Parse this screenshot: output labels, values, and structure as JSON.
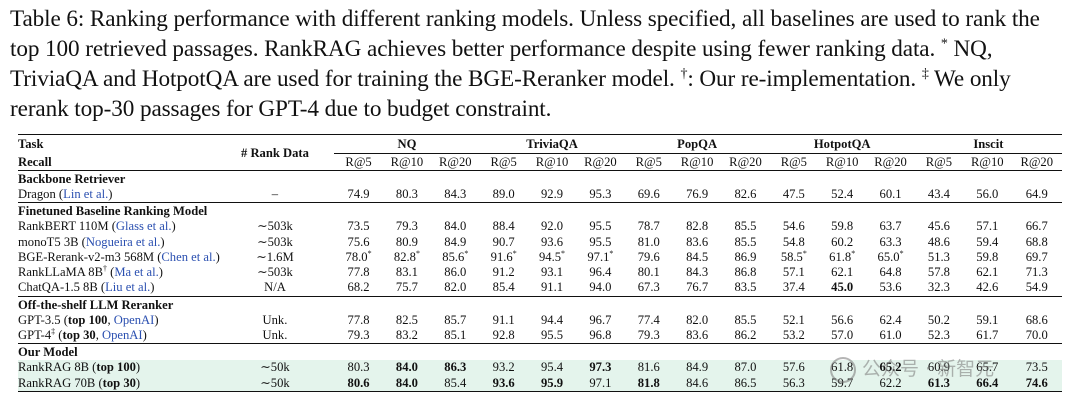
{
  "caption": {
    "label": "Table 6:",
    "text1": " Ranking performance with different ranking models. Unless specified, all baselines are used to rank the top 100 retrieved passages. RankRAG achieves better performance despite using fewer ranking data. ",
    "mark_star": "*",
    "text2": " NQ, TriviaQA and HotpotQA are used for training the BGE-Reranker model. ",
    "mark_dagger": "†",
    "text3": ": Our re-implementation. ",
    "mark_ddagger": "‡",
    "text4": " We only rerank top-30 passages for GPT-4 due to budget constraint."
  },
  "header": {
    "task": "Task",
    "recall": "Recall",
    "rank_data": "# Rank Data",
    "datasets": [
      "NQ",
      "TriviaQA",
      "PopQA",
      "HotpotQA",
      "Inscit"
    ],
    "metrics": [
      "R@5",
      "R@10",
      "R@20"
    ]
  },
  "sections": [
    {
      "title": "Backbone Retriever",
      "rows": [
        {
          "name": "Dragon",
          "cite": "Lin et al.",
          "rank": "–",
          "vals": [
            "74.9",
            "80.3",
            "84.3",
            "89.0",
            "92.9",
            "95.3",
            "69.6",
            "76.9",
            "82.6",
            "47.5",
            "52.4",
            "60.1",
            "43.4",
            "56.0",
            "64.9"
          ]
        }
      ]
    },
    {
      "title": "Finetuned Baseline Ranking Model",
      "rows": [
        {
          "name": "RankBERT 110M",
          "cite": "Glass et al.",
          "rank": "∼503k",
          "vals": [
            "73.5",
            "79.3",
            "84.0",
            "88.4",
            "92.0",
            "95.5",
            "78.7",
            "82.8",
            "85.5",
            "54.6",
            "59.8",
            "63.7",
            "45.6",
            "57.1",
            "66.7"
          ]
        },
        {
          "name": "monoT5 3B",
          "cite": "Nogueira et al.",
          "rank": "∼503k",
          "vals": [
            "75.6",
            "80.9",
            "84.9",
            "90.7",
            "93.6",
            "95.5",
            "81.0",
            "83.6",
            "85.5",
            "54.8",
            "60.2",
            "63.3",
            "48.6",
            "59.4",
            "68.8"
          ]
        },
        {
          "name": "BGE-Rerank-v2-m3 568M",
          "cite": "Chen et al.",
          "rank": "∼1.6M",
          "vals": [
            "78.0*",
            "82.8*",
            "85.6*",
            "91.6*",
            "94.5*",
            "97.1*",
            "79.6",
            "84.5",
            "86.9",
            "58.5*",
            "61.8*",
            "65.0*",
            "51.3",
            "59.8",
            "69.7"
          ]
        },
        {
          "name": "RankLLaMA 8B",
          "sup": "†",
          "cite": "Ma et al.",
          "rank": "∼503k",
          "vals": [
            "77.8",
            "83.1",
            "86.0",
            "91.2",
            "93.1",
            "96.4",
            "80.1",
            "84.3",
            "86.8",
            "57.1",
            "62.1",
            "64.8",
            "57.8",
            "62.1",
            "71.3"
          ]
        },
        {
          "name": "ChatQA-1.5 8B",
          "cite": "Liu et al.",
          "rank": "N/A",
          "vals": [
            "68.2",
            "75.7",
            "82.0",
            "85.4",
            "91.1",
            "94.0",
            "67.3",
            "76.7",
            "83.5",
            "37.4",
            "45.0",
            "53.6",
            "32.3",
            "42.6",
            "54.9"
          ]
        }
      ]
    },
    {
      "title": "Off-the-shelf LLM Reranker",
      "rows": [
        {
          "name": "GPT-3.5",
          "paren": "top 100",
          "cite": "OpenAI",
          "rank": "Unk.",
          "vals": [
            "77.8",
            "82.5",
            "85.7",
            "91.1",
            "94.4",
            "96.7",
            "77.4",
            "82.0",
            "85.5",
            "52.1",
            "56.6",
            "62.4",
            "50.2",
            "59.1",
            "68.6"
          ]
        },
        {
          "name": "GPT-4",
          "sup": "‡",
          "paren": "top 30",
          "cite": "OpenAI",
          "rank": "Unk.",
          "vals": [
            "79.3",
            "83.2",
            "85.1",
            "92.8",
            "95.5",
            "96.8",
            "79.3",
            "83.6",
            "86.2",
            "53.2",
            "57.0",
            "61.0",
            "52.3",
            "61.7",
            "70.0"
          ]
        }
      ]
    },
    {
      "title": "Our Model",
      "rows": [
        {
          "name": "RankRAG 8B",
          "paren": "top 100",
          "rank": "∼50k",
          "vals": [
            "80.3",
            "84.0",
            "86.3",
            "93.2",
            "95.4",
            "97.3",
            "81.6",
            "84.9",
            "87.0",
            "57.6",
            "61.8",
            "65.2",
            "60.9",
            "65.7",
            "73.5"
          ]
        },
        {
          "name": "RankRAG 70B",
          "paren": "top 30",
          "rank": "∼50k",
          "vals": [
            "80.6",
            "84.0",
            "85.4",
            "93.6",
            "95.9",
            "97.1",
            "81.8",
            "84.6",
            "86.5",
            "56.3",
            "59.7",
            "62.2",
            "61.3",
            "66.4",
            "74.6"
          ]
        }
      ]
    }
  ],
  "watermark": "公众号 · 新智元"
}
